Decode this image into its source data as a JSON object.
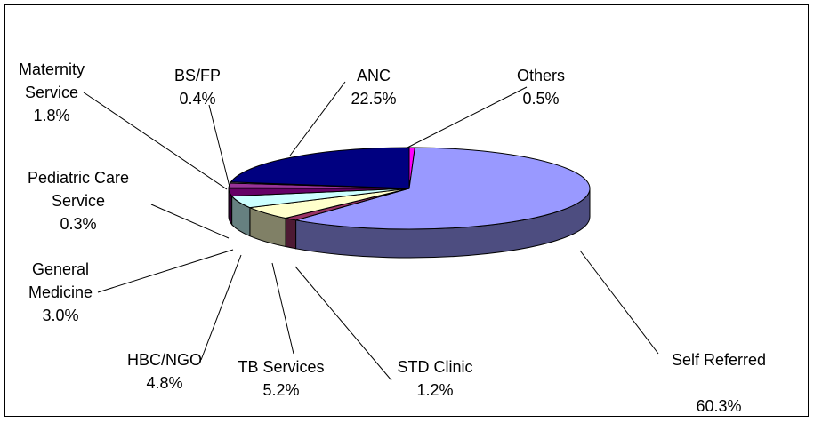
{
  "chart_data": {
    "type": "pie3d",
    "categories": [
      "Others",
      "Self Referred",
      "STD Clinic",
      "TB Services",
      "HBC/NGO",
      "General Medicine",
      "Pediatric Care Service",
      "Maternity Service",
      "BS/FP",
      "ANC"
    ],
    "values": [
      0.5,
      60.3,
      1.2,
      5.2,
      4.8,
      3.0,
      0.3,
      1.8,
      0.4,
      22.5
    ],
    "value_labels": [
      "0.5%",
      "60.3%",
      "1.2%",
      "5.2%",
      "4.8%",
      "3.0%",
      "0.3%",
      "1.8%",
      "0.4%",
      "22.5%"
    ],
    "colors": [
      "#ff00ff",
      "#9999ff",
      "#993366",
      "#ffffcc",
      "#ccffff",
      "#660066",
      "#ff8080",
      "#993399",
      "#ccccff",
      "#000080"
    ]
  }
}
